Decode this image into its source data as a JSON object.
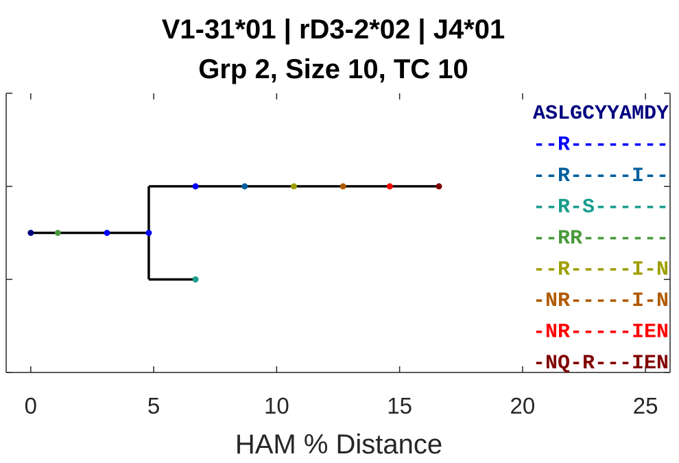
{
  "chart_data": {
    "type": "line",
    "title": [
      "V1-31*01 | rD3-2*02 | J4*01",
      "Grp 2, Size 10, TC 10"
    ],
    "xlabel": "HAM % Distance",
    "xlim": [
      -1,
      26
    ],
    "xticks": [
      0,
      5,
      10,
      15,
      20,
      25
    ],
    "y_levels": 4,
    "tree_edges": [
      {
        "x0": 0,
        "x1": 4.8,
        "level": 2
      },
      {
        "x0": 4.8,
        "level_from": 1,
        "level_to": 3
      },
      {
        "x0": 4.8,
        "x1": 16.6,
        "level": 1
      },
      {
        "x0": 4.8,
        "x1": 6.7,
        "level": 3
      }
    ],
    "nodes": [
      {
        "x": 0,
        "level": 2,
        "color": "#00007f"
      },
      {
        "x": 1.1,
        "level": 2,
        "color": "#4a9a3c"
      },
      {
        "x": 3.1,
        "level": 2,
        "color": "#0000ff"
      },
      {
        "x": 4.8,
        "level": 2,
        "color": "#0000ff"
      },
      {
        "x": 6.7,
        "level": 1,
        "color": "#0000ff"
      },
      {
        "x": 8.7,
        "level": 1,
        "color": "#005f9f"
      },
      {
        "x": 10.7,
        "level": 1,
        "color": "#9f9f00"
      },
      {
        "x": 12.7,
        "level": 1,
        "color": "#b05a00"
      },
      {
        "x": 14.6,
        "level": 1,
        "color": "#ff0000"
      },
      {
        "x": 16.6,
        "level": 1,
        "color": "#800000"
      },
      {
        "x": 6.7,
        "level": 3,
        "color": "#1a9c8c"
      }
    ],
    "sequences": [
      {
        "text": "ASLGCYYAMDY",
        "color": "#00007f"
      },
      {
        "text": "--R--------",
        "color": "#0000ff"
      },
      {
        "text": "--R-----I--",
        "color": "#005f9f"
      },
      {
        "text": "--R-S------",
        "color": "#1a9c8c"
      },
      {
        "text": "--RR-------",
        "color": "#4a9a3c"
      },
      {
        "text": "--R-----I-N",
        "color": "#9f9f00"
      },
      {
        "text": "-NR-----I-N",
        "color": "#b05a00"
      },
      {
        "text": "-NR-----IEN",
        "color": "#ff0000"
      },
      {
        "text": "-NQ-R---IEN",
        "color": "#800000"
      }
    ]
  }
}
